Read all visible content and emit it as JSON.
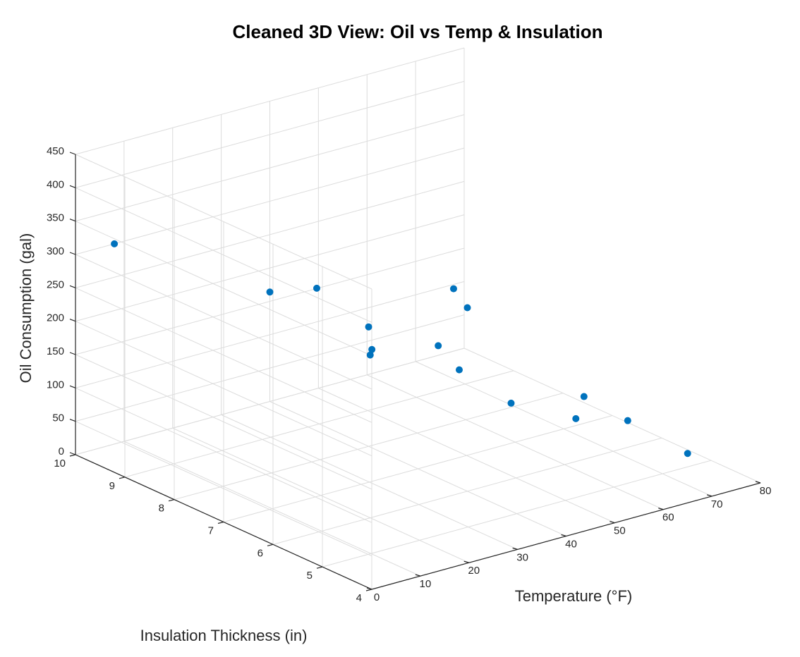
{
  "chart_data": {
    "type": "scatter",
    "title": "Cleaned 3D View: Oil vs Temp & Insulation",
    "xlabel": "Temperature (°F)",
    "ylabel": "Insulation Thickness (in)",
    "zlabel": "Oil Consumption (gal)",
    "xlim": [
      0,
      80
    ],
    "ylim": [
      4,
      10
    ],
    "zlim": [
      0,
      450
    ],
    "xticks": [
      "0",
      "10",
      "20",
      "30",
      "40",
      "50",
      "60",
      "70",
      "80"
    ],
    "yticks": [
      "4",
      "5",
      "6",
      "7",
      "8",
      "9",
      "10"
    ],
    "zticks": [
      "0",
      "50",
      "100",
      "150",
      "200",
      "250",
      "300",
      "350",
      "400",
      "450"
    ],
    "grid": true,
    "marker_color": "#0072BD",
    "points": [
      {
        "x": 40,
        "y": 6,
        "z": 275
      },
      {
        "x": 27,
        "y": 5,
        "z": 363
      },
      {
        "x": 40,
        "y": 10,
        "z": 164
      },
      {
        "x": 73,
        "y": 6,
        "z": 40
      },
      {
        "x": 64,
        "y": 6,
        "z": 94
      },
      {
        "x": 34,
        "y": 6,
        "z": 230
      },
      {
        "x": 9,
        "y": 6,
        "z": 366
      },
      {
        "x": 8,
        "y": 10,
        "z": 300
      },
      {
        "x": 65,
        "y": 4,
        "z": 74
      },
      {
        "x": 61,
        "y": 10,
        "z": 36
      },
      {
        "x": 49,
        "y": 6,
        "z": 114
      },
      {
        "x": 18,
        "y": 4,
        "z": 293
      },
      {
        "x": 40,
        "y": 8,
        "z": 179
      },
      {
        "x": 20,
        "y": 6,
        "z": 244
      },
      {
        "x": 42,
        "y": 4,
        "z": 172
      }
    ]
  }
}
